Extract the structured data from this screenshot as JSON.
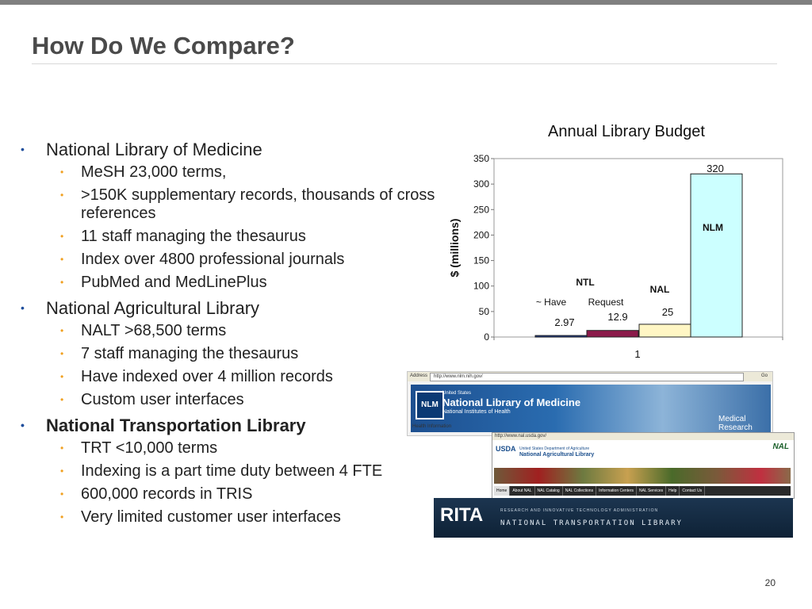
{
  "slide": {
    "title": "How Do We Compare?",
    "page_number": "20"
  },
  "bullets": [
    {
      "text": "National Library of Medicine",
      "bold": false,
      "items": [
        "MeSH 23,000 terms,",
        ">150K supplementary records, thousands of cross references",
        "11 staff managing the thesaurus",
        "Index over 4800 professional journals",
        "PubMed and MedLinePlus"
      ]
    },
    {
      "text": "National Agricultural Library",
      "bold": false,
      "items": [
        "NALT >68,500 terms",
        "7 staff managing the thesaurus",
        "Have indexed over 4 million records",
        "Custom user interfaces"
      ]
    },
    {
      "text": "National Transportation Library",
      "bold": true,
      "items": [
        "TRT <10,000 terms",
        "Indexing is a part time duty between 4 FTE",
        "600,000 records in TRIS",
        "Very limited customer user interfaces"
      ]
    }
  ],
  "chart_data": {
    "type": "bar",
    "title": "Annual Library Budget",
    "ylabel": "$ (millions)",
    "xlabel": "",
    "categories": [
      "1"
    ],
    "ylim": [
      0,
      350
    ],
    "yticks": [
      0,
      50,
      100,
      150,
      200,
      250,
      300,
      350
    ],
    "legend": "none",
    "series": [
      {
        "value": 2.97,
        "color": "#1f3a8a",
        "value_label": "2.97"
      },
      {
        "value": 12.9,
        "color": "#8b1a4a",
        "value_label": "12.9"
      },
      {
        "value": 25,
        "color": "#fff6c4",
        "value_label": "25",
        "bar_label": "NAL"
      },
      {
        "value": 320,
        "color": "#ccffff",
        "value_label": "320",
        "bar_label": "NLM"
      }
    ],
    "annotations": {
      "ntl": "NTL",
      "have": "~ Have",
      "request": "Request"
    }
  },
  "screenshots": {
    "nlm": {
      "address_label": "Address",
      "url": "http://www.nlm.nih.gov/",
      "go": "Go",
      "logo": "NLM",
      "united_states": "United States",
      "name": "National Library of Medicine",
      "nih": "National Institutes of Health",
      "research": "Medical Research",
      "health_info": "Health Information"
    },
    "nal": {
      "url": "http://www.nal.usda.gov/",
      "usda": "USDA",
      "dept": "United States Department of Agriculture",
      "name": "National Agricultural Library",
      "logo": "NAL",
      "nav": [
        "Home",
        "About NAL",
        "NAL Catalog",
        "NAL Collections",
        "Information Centers",
        "NAL Services",
        "Help",
        "Contact Us"
      ]
    },
    "rita": {
      "logo": "RITA",
      "subtitle": "RESEARCH AND INNOVATIVE TECHNOLOGY ADMINISTRATION",
      "library": "NATIONAL TRANSPORTATION LIBRARY"
    }
  }
}
